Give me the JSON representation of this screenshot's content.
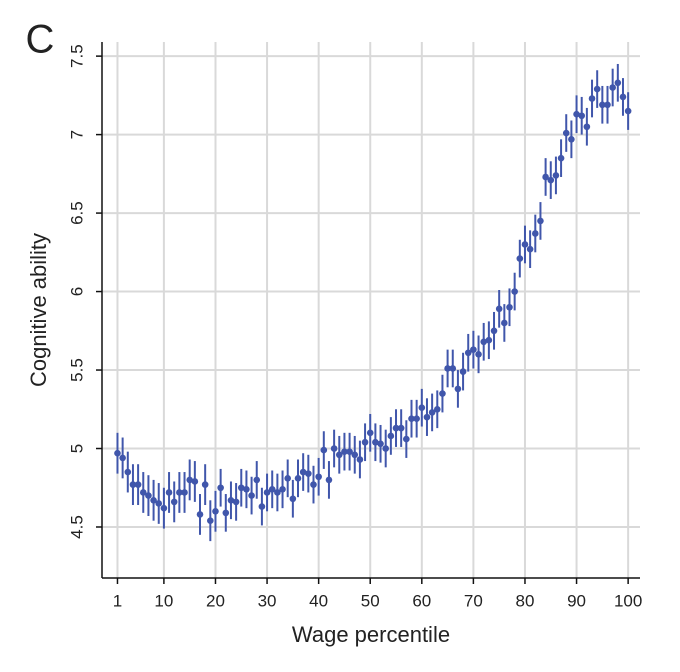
{
  "chart_data": {
    "type": "scatter",
    "panel_label": "C",
    "xlabel": "Wage percentile",
    "ylabel": "Cognitive ability",
    "color": "#4056ab",
    "grid": true,
    "xlim": [
      -2,
      102.3
    ],
    "ylim": [
      4.175,
      7.59
    ],
    "xticks": [
      1,
      10,
      20,
      30,
      40,
      50,
      60,
      70,
      80,
      90,
      100
    ],
    "yticks": [
      4.5,
      5,
      5.5,
      6,
      6.5,
      7,
      7.5
    ],
    "x": [
      1,
      2,
      3,
      4,
      5,
      6,
      7,
      8,
      9,
      10,
      11,
      12,
      13,
      14,
      15,
      16,
      17,
      18,
      19,
      20,
      21,
      22,
      23,
      24,
      25,
      26,
      27,
      28,
      29,
      30,
      31,
      32,
      33,
      34,
      35,
      36,
      37,
      38,
      39,
      40,
      41,
      42,
      43,
      44,
      45,
      46,
      47,
      48,
      49,
      50,
      51,
      52,
      53,
      54,
      55,
      56,
      57,
      58,
      59,
      60,
      61,
      62,
      63,
      64,
      65,
      66,
      67,
      68,
      69,
      70,
      71,
      72,
      73,
      74,
      75,
      76,
      77,
      78,
      79,
      80,
      81,
      82,
      83,
      84,
      85,
      86,
      87,
      88,
      89,
      90,
      91,
      92,
      93,
      94,
      95,
      96,
      97,
      98,
      99,
      100
    ],
    "values": [
      4.97,
      4.94,
      4.85,
      4.77,
      4.77,
      4.72,
      4.7,
      4.67,
      4.65,
      4.62,
      4.72,
      4.66,
      4.72,
      4.72,
      4.8,
      4.79,
      4.58,
      4.77,
      4.54,
      4.6,
      4.75,
      4.59,
      4.67,
      4.66,
      4.75,
      4.74,
      4.7,
      4.8,
      4.63,
      4.72,
      4.74,
      4.72,
      4.74,
      4.81,
      4.68,
      4.81,
      4.85,
      4.84,
      4.77,
      4.82,
      4.99,
      4.8,
      5.0,
      4.96,
      4.98,
      4.98,
      4.96,
      4.93,
      5.04,
      5.1,
      5.04,
      5.03,
      5.0,
      5.08,
      5.13,
      5.13,
      5.06,
      5.19,
      5.19,
      5.26,
      5.2,
      5.23,
      5.25,
      5.35,
      5.51,
      5.51,
      5.38,
      5.49,
      5.61,
      5.63,
      5.6,
      5.68,
      5.69,
      5.75,
      5.89,
      5.8,
      5.9,
      6.0,
      6.21,
      6.3,
      6.27,
      6.37,
      6.45,
      6.73,
      6.71,
      6.74,
      6.85,
      7.01,
      6.97,
      7.13,
      7.12,
      7.05,
      7.23,
      7.29,
      7.19,
      7.19,
      7.3,
      7.33,
      7.24,
      7.15
    ],
    "errors": [
      0.13,
      0.13,
      0.13,
      0.13,
      0.13,
      0.13,
      0.13,
      0.13,
      0.13,
      0.13,
      0.13,
      0.13,
      0.13,
      0.13,
      0.13,
      0.13,
      0.13,
      0.13,
      0.13,
      0.13,
      0.12,
      0.12,
      0.12,
      0.12,
      0.12,
      0.12,
      0.12,
      0.12,
      0.12,
      0.12,
      0.12,
      0.12,
      0.12,
      0.12,
      0.12,
      0.12,
      0.12,
      0.12,
      0.12,
      0.12,
      0.12,
      0.12,
      0.12,
      0.12,
      0.12,
      0.12,
      0.12,
      0.12,
      0.12,
      0.12,
      0.12,
      0.12,
      0.12,
      0.12,
      0.12,
      0.12,
      0.12,
      0.12,
      0.12,
      0.12,
      0.12,
      0.12,
      0.12,
      0.12,
      0.12,
      0.12,
      0.12,
      0.12,
      0.12,
      0.12,
      0.12,
      0.12,
      0.12,
      0.12,
      0.12,
      0.12,
      0.12,
      0.12,
      0.12,
      0.12,
      0.12,
      0.12,
      0.12,
      0.12,
      0.12,
      0.12,
      0.12,
      0.12,
      0.12,
      0.12,
      0.12,
      0.12,
      0.12,
      0.12,
      0.12,
      0.12,
      0.12,
      0.12,
      0.12,
      0.12
    ]
  }
}
